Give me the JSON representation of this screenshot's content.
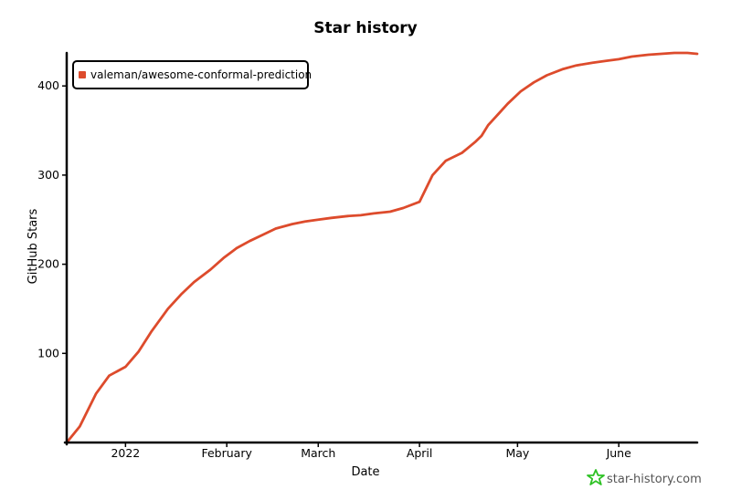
{
  "chart_data": {
    "type": "line",
    "title": "Star history",
    "xlabel": "Date",
    "ylabel": "GitHub Stars",
    "x_tick_labels": [
      "2022",
      "February",
      "March",
      "April",
      "May",
      "June"
    ],
    "x_tick_dates": [
      "2022-01-01",
      "2022-02-01",
      "2022-03-01",
      "2022-04-01",
      "2022-05-01",
      "2022-06-01"
    ],
    "y_ticks": [
      100,
      200,
      300,
      400
    ],
    "xlim": [
      "2021-12-14",
      "2022-06-25"
    ],
    "ylim": [
      0,
      435
    ],
    "legend_position": "top-left",
    "grid": false,
    "series": [
      {
        "name": "valeman/awesome-conformal-prediction",
        "color": "#dd4b2c",
        "x": [
          "2021-12-14",
          "2021-12-18",
          "2021-12-23",
          "2021-12-27",
          "2022-01-01",
          "2022-01-05",
          "2022-01-09",
          "2022-01-14",
          "2022-01-18",
          "2022-01-22",
          "2022-01-27",
          "2022-01-31",
          "2022-02-04",
          "2022-02-08",
          "2022-02-12",
          "2022-02-16",
          "2022-02-21",
          "2022-02-25",
          "2022-03-01",
          "2022-03-05",
          "2022-03-10",
          "2022-03-14",
          "2022-03-18",
          "2022-03-23",
          "2022-03-27",
          "2022-04-01",
          "2022-04-05",
          "2022-04-09",
          "2022-04-14",
          "2022-04-18",
          "2022-04-20",
          "2022-04-22",
          "2022-04-25",
          "2022-04-28",
          "2022-05-02",
          "2022-05-06",
          "2022-05-10",
          "2022-05-15",
          "2022-05-19",
          "2022-05-24",
          "2022-05-28",
          "2022-06-01",
          "2022-06-05",
          "2022-06-10",
          "2022-06-14",
          "2022-06-18",
          "2022-06-22",
          "2022-06-25"
        ],
        "values": [
          0,
          18,
          55,
          75,
          85,
          102,
          125,
          150,
          166,
          180,
          194,
          207,
          218,
          226,
          233,
          240,
          245,
          248,
          250,
          252,
          254,
          255,
          257,
          259,
          263,
          270,
          300,
          316,
          325,
          337,
          344,
          356,
          368,
          380,
          394,
          404,
          412,
          419,
          423,
          426,
          428,
          430,
          433,
          435,
          436,
          437,
          437,
          436
        ]
      }
    ]
  },
  "brand": {
    "text": "star-history.com",
    "icon": "star-icon",
    "icon_color": "#2ec225"
  }
}
